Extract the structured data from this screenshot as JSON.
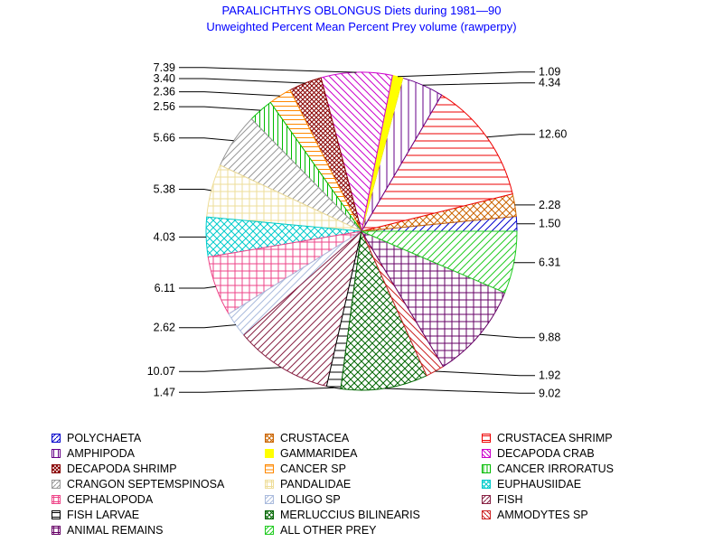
{
  "chart_data": {
    "type": "pie",
    "title": "PARALICHTHYS OBLONGUS Diets during 1981—90",
    "subtitle": "Unweighted Percent Mean Percent Prey  volume (rawperpy)",
    "slices": [
      {
        "name": "POLYCHAETA",
        "value": 1.5,
        "label": "1.50",
        "color": "#0000cc",
        "pattern": "diag-right"
      },
      {
        "name": "CRUSTACEA",
        "value": 2.28,
        "label": "2.28",
        "color": "#cc6600",
        "pattern": "cross-diag"
      },
      {
        "name": "CRUSTACEA SHRIMP",
        "value": 12.6,
        "label": "12.60",
        "color": "#ee0000",
        "pattern": "horizontal"
      },
      {
        "name": "AMPHIPODA",
        "value": 4.34,
        "label": "4.34",
        "color": "#660088",
        "pattern": "vertical"
      },
      {
        "name": "GAMMARIDEA",
        "value": 1.09,
        "label": "1.09",
        "color": "#ffff00",
        "pattern": "solid"
      },
      {
        "name": "DECAPODA CRAB",
        "value": 7.39,
        "label": "7.39",
        "color": "#cc00cc",
        "pattern": "diag-left"
      },
      {
        "name": "DECAPODA SHRIMP",
        "value": 3.4,
        "label": "3.40",
        "color": "#880000",
        "pattern": "cross-diag-dense"
      },
      {
        "name": "CANCER SP",
        "value": 2.36,
        "label": "2.36",
        "color": "#ff8800",
        "pattern": "horizontal-dense"
      },
      {
        "name": "CANCER IRRORATUS",
        "value": 2.56,
        "label": "2.56",
        "color": "#00bb00",
        "pattern": "vertical-dense"
      },
      {
        "name": "CRANGON SEPTEMSPINOSA",
        "value": 5.66,
        "label": "5.66",
        "color": "#999999",
        "pattern": "diag-right"
      },
      {
        "name": "PANDALIDAE",
        "value": 5.38,
        "label": "5.38",
        "color": "#eedd99",
        "pattern": "grid"
      },
      {
        "name": "EUPHAUSIIDAE",
        "value": 4.03,
        "label": "4.03",
        "color": "#00cccc",
        "pattern": "cross-diag"
      },
      {
        "name": "CEPHALOPODA",
        "value": 6.11,
        "label": "6.11",
        "color": "#ee4488",
        "pattern": "grid"
      },
      {
        "name": "LOLIGO SP",
        "value": 2.62,
        "label": "2.62",
        "color": "#aabbdd",
        "pattern": "diag-right"
      },
      {
        "name": "FISH",
        "value": 10.07,
        "label": "10.07",
        "color": "#882244",
        "pattern": "diag-right"
      },
      {
        "name": "FISH LARVAE",
        "value": 1.47,
        "label": "1.47",
        "color": "#000000",
        "pattern": "horizontal"
      },
      {
        "name": "MERLUCCIUS BILINEARIS",
        "value": 9.02,
        "label": "9.02",
        "color": "#006600",
        "pattern": "cross-diag"
      },
      {
        "name": "AMMODYTES SP",
        "value": 1.92,
        "label": "1.92",
        "color": "#cc2222",
        "pattern": "diag-left"
      },
      {
        "name": "ANIMAL REMAINS",
        "value": 9.88,
        "label": "9.88",
        "color": "#660066",
        "pattern": "grid"
      },
      {
        "name": "ALL OTHER PREY",
        "value": 6.31,
        "label": "6.31",
        "color": "#22cc22",
        "pattern": "diag-right"
      }
    ],
    "legend_placement": "bottom"
  }
}
